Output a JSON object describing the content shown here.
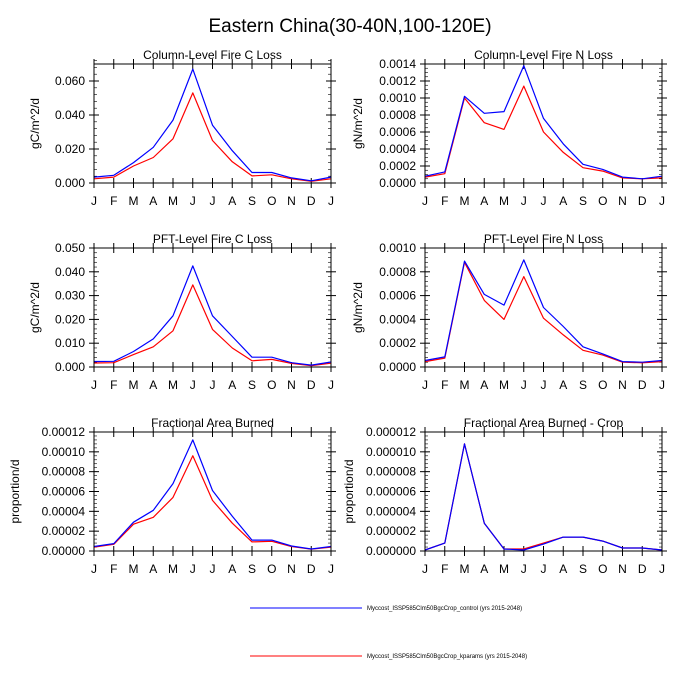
{
  "figure_title": "Eastern China(30-40N,100-120E)",
  "colors": {
    "control": "#0000ff",
    "kparams": "#ff0000"
  },
  "legend": [
    {
      "label": "Myccost_ISSP585Clm50BgcCrop_control (yrs 2015-2048)",
      "series": "control",
      "color": "#0000ff"
    },
    {
      "label": "Myccost_ISSP585Clm50BgcCrop_kparams (yrs 2015-2048)",
      "series": "kparams",
      "color": "#ff0000"
    }
  ],
  "chart_data": [
    {
      "type": "line",
      "id": "col-c",
      "title": "Column-Level Fire C Loss",
      "xlabel": "",
      "ylabel": "gC/m^2/d",
      "categories": [
        "J",
        "F",
        "M",
        "A",
        "M",
        "J",
        "J",
        "A",
        "S",
        "O",
        "N",
        "D",
        "J"
      ],
      "ylim": [
        0,
        0.07
      ],
      "yticks": [
        0.0,
        0.02,
        0.04,
        0.06
      ],
      "ytick_labels": [
        "0.000",
        "0.020",
        "0.040",
        "0.060"
      ],
      "yminor_step": 0.004,
      "series": [
        {
          "name": "control",
          "values": [
            0.0035,
            0.0045,
            0.012,
            0.021,
            0.037,
            0.067,
            0.034,
            0.019,
            0.0062,
            0.0062,
            0.003,
            0.0013,
            0.0035
          ]
        },
        {
          "name": "kparams",
          "values": [
            0.0025,
            0.0035,
            0.01,
            0.015,
            0.026,
            0.053,
            0.025,
            0.0125,
            0.0042,
            0.0048,
            0.0025,
            0.001,
            0.0025
          ]
        }
      ],
      "grid": false
    },
    {
      "type": "line",
      "id": "col-n",
      "title": "Column-Level Fire N Loss",
      "xlabel": "",
      "ylabel": "gN/m^2/d",
      "categories": [
        "J",
        "F",
        "M",
        "A",
        "M",
        "J",
        "J",
        "A",
        "S",
        "O",
        "N",
        "D",
        "J"
      ],
      "ylim": [
        0,
        0.0014
      ],
      "yticks": [
        0.0,
        0.0002,
        0.0004,
        0.0006,
        0.0008,
        0.001,
        0.0012,
        0.0014
      ],
      "ytick_labels": [
        "0.0000",
        "0.0002",
        "0.0004",
        "0.0006",
        "0.0008",
        "0.0010",
        "0.0012",
        "0.0014"
      ],
      "yminor_step": 5e-05,
      "series": [
        {
          "name": "control",
          "values": [
            8e-05,
            0.00013,
            0.00102,
            0.00082,
            0.00084,
            0.00138,
            0.00076,
            0.00046,
            0.00022,
            0.00016,
            7e-05,
            5e-05,
            8e-05
          ]
        },
        {
          "name": "kparams",
          "values": [
            7e-05,
            0.00011,
            0.001,
            0.00071,
            0.00063,
            0.00114,
            0.0006,
            0.00036,
            0.00018,
            0.00014,
            6e-05,
            5e-05,
            6e-05
          ]
        }
      ],
      "grid": false
    },
    {
      "type": "line",
      "id": "pft-c",
      "title": "PFT-Level Fire C Loss",
      "xlabel": "",
      "ylabel": "gC/m^2/d",
      "categories": [
        "J",
        "F",
        "M",
        "A",
        "M",
        "J",
        "J",
        "A",
        "S",
        "O",
        "N",
        "D",
        "J"
      ],
      "ylim": [
        0,
        0.05
      ],
      "yticks": [
        0.0,
        0.01,
        0.02,
        0.03,
        0.04,
        0.05
      ],
      "ytick_labels": [
        "0.000",
        "0.010",
        "0.020",
        "0.030",
        "0.040",
        "0.050"
      ],
      "yminor_step": 0.002,
      "series": [
        {
          "name": "control",
          "values": [
            0.0023,
            0.0024,
            0.0065,
            0.0118,
            0.0215,
            0.0425,
            0.0215,
            0.0128,
            0.0041,
            0.0041,
            0.0018,
            0.0008,
            0.0021
          ]
        },
        {
          "name": "kparams",
          "values": [
            0.0017,
            0.0018,
            0.0052,
            0.0085,
            0.0152,
            0.0345,
            0.0158,
            0.008,
            0.0026,
            0.0032,
            0.0015,
            0.0006,
            0.0016
          ]
        }
      ],
      "grid": false
    },
    {
      "type": "line",
      "id": "pft-n",
      "title": "PFT-Level Fire N Loss",
      "xlabel": "",
      "ylabel": "gN/m^2/d",
      "categories": [
        "J",
        "F",
        "M",
        "A",
        "M",
        "J",
        "J",
        "A",
        "S",
        "O",
        "N",
        "D",
        "J"
      ],
      "ylim": [
        0,
        0.001
      ],
      "yticks": [
        0.0,
        0.0002,
        0.0004,
        0.0006,
        0.0008,
        0.001
      ],
      "ytick_labels": [
        "0.0000",
        "0.0002",
        "0.0004",
        "0.0006",
        "0.0008",
        "0.0010"
      ],
      "yminor_step": 4e-05,
      "series": [
        {
          "name": "control",
          "values": [
            5.5e-05,
            8.5e-05,
            0.00089,
            0.00061,
            0.00052,
            0.0009,
            0.0005,
            0.00034,
            0.00017,
            0.00011,
            4.5e-05,
            4e-05,
            5.5e-05
          ]
        },
        {
          "name": "kparams",
          "values": [
            4.5e-05,
            7.5e-05,
            0.00088,
            0.00056,
            0.0004,
            0.00076,
            0.00041,
            0.00027,
            0.00014,
            0.0001,
            4e-05,
            3.5e-05,
            4.5e-05
          ]
        }
      ],
      "grid": false
    },
    {
      "type": "line",
      "id": "fab",
      "title": "Fractional Area Burned",
      "xlabel": "",
      "ylabel": "proportion/d",
      "categories": [
        "J",
        "F",
        "M",
        "A",
        "M",
        "J",
        "J",
        "A",
        "S",
        "O",
        "N",
        "D",
        "J"
      ],
      "ylim": [
        0,
        0.00012
      ],
      "yticks": [
        0.0,
        2e-05,
        4e-05,
        6e-05,
        8e-05,
        0.0001,
        0.00012
      ],
      "ytick_labels": [
        "0.00000",
        "0.00002",
        "0.00004",
        "0.00006",
        "0.00008",
        "0.00010",
        "0.00012"
      ],
      "yminor_step": 4e-06,
      "series": [
        {
          "name": "control",
          "values": [
            4.5e-06,
            7.5e-06,
            2.9e-05,
            4.1e-05,
            6.8e-05,
            0.000112,
            6.1e-05,
            3.5e-05,
            1.1e-05,
            1.1e-05,
            5e-06,
            2e-06,
            4.5e-06
          ]
        },
        {
          "name": "kparams",
          "values": [
            3.8e-06,
            6.8e-06,
            2.7e-05,
            3.4e-05,
            5.4e-05,
            9.6e-05,
            5.1e-05,
            2.8e-05,
            9.2e-06,
            9.8e-06,
            4.5e-06,
            1.8e-06,
            3.8e-06
          ]
        }
      ],
      "grid": false
    },
    {
      "type": "line",
      "id": "fab-crop",
      "title": "Fractional Area Burned - Crop",
      "xlabel": "",
      "ylabel": "proportion/d",
      "categories": [
        "J",
        "F",
        "M",
        "A",
        "M",
        "J",
        "J",
        "A",
        "S",
        "O",
        "N",
        "D",
        "J"
      ],
      "ylim": [
        0,
        1.2e-05
      ],
      "yticks": [
        0.0,
        2e-06,
        4e-06,
        6e-06,
        8e-06,
        1e-05,
        1.2e-05
      ],
      "ytick_labels": [
        "0.000000",
        "0.000002",
        "0.000004",
        "0.000006",
        "0.000008",
        "0.000010",
        "0.000012"
      ],
      "yminor_step": 4e-07,
      "series": [
        {
          "name": "control",
          "values": [
            1e-07,
            8e-07,
            1.08e-05,
            2.8e-06,
            2e-07,
            1e-07,
            7e-07,
            1.4e-06,
            1.4e-06,
            1e-06,
            3e-07,
            3e-07,
            1e-07
          ]
        },
        {
          "name": "kparams",
          "values": [
            1e-07,
            8e-07,
            1.08e-05,
            2.8e-06,
            2e-07,
            2e-07,
            8e-07,
            1.4e-06,
            1.4e-06,
            1e-06,
            3e-07,
            3e-07,
            1e-07
          ]
        }
      ],
      "grid": false
    }
  ]
}
